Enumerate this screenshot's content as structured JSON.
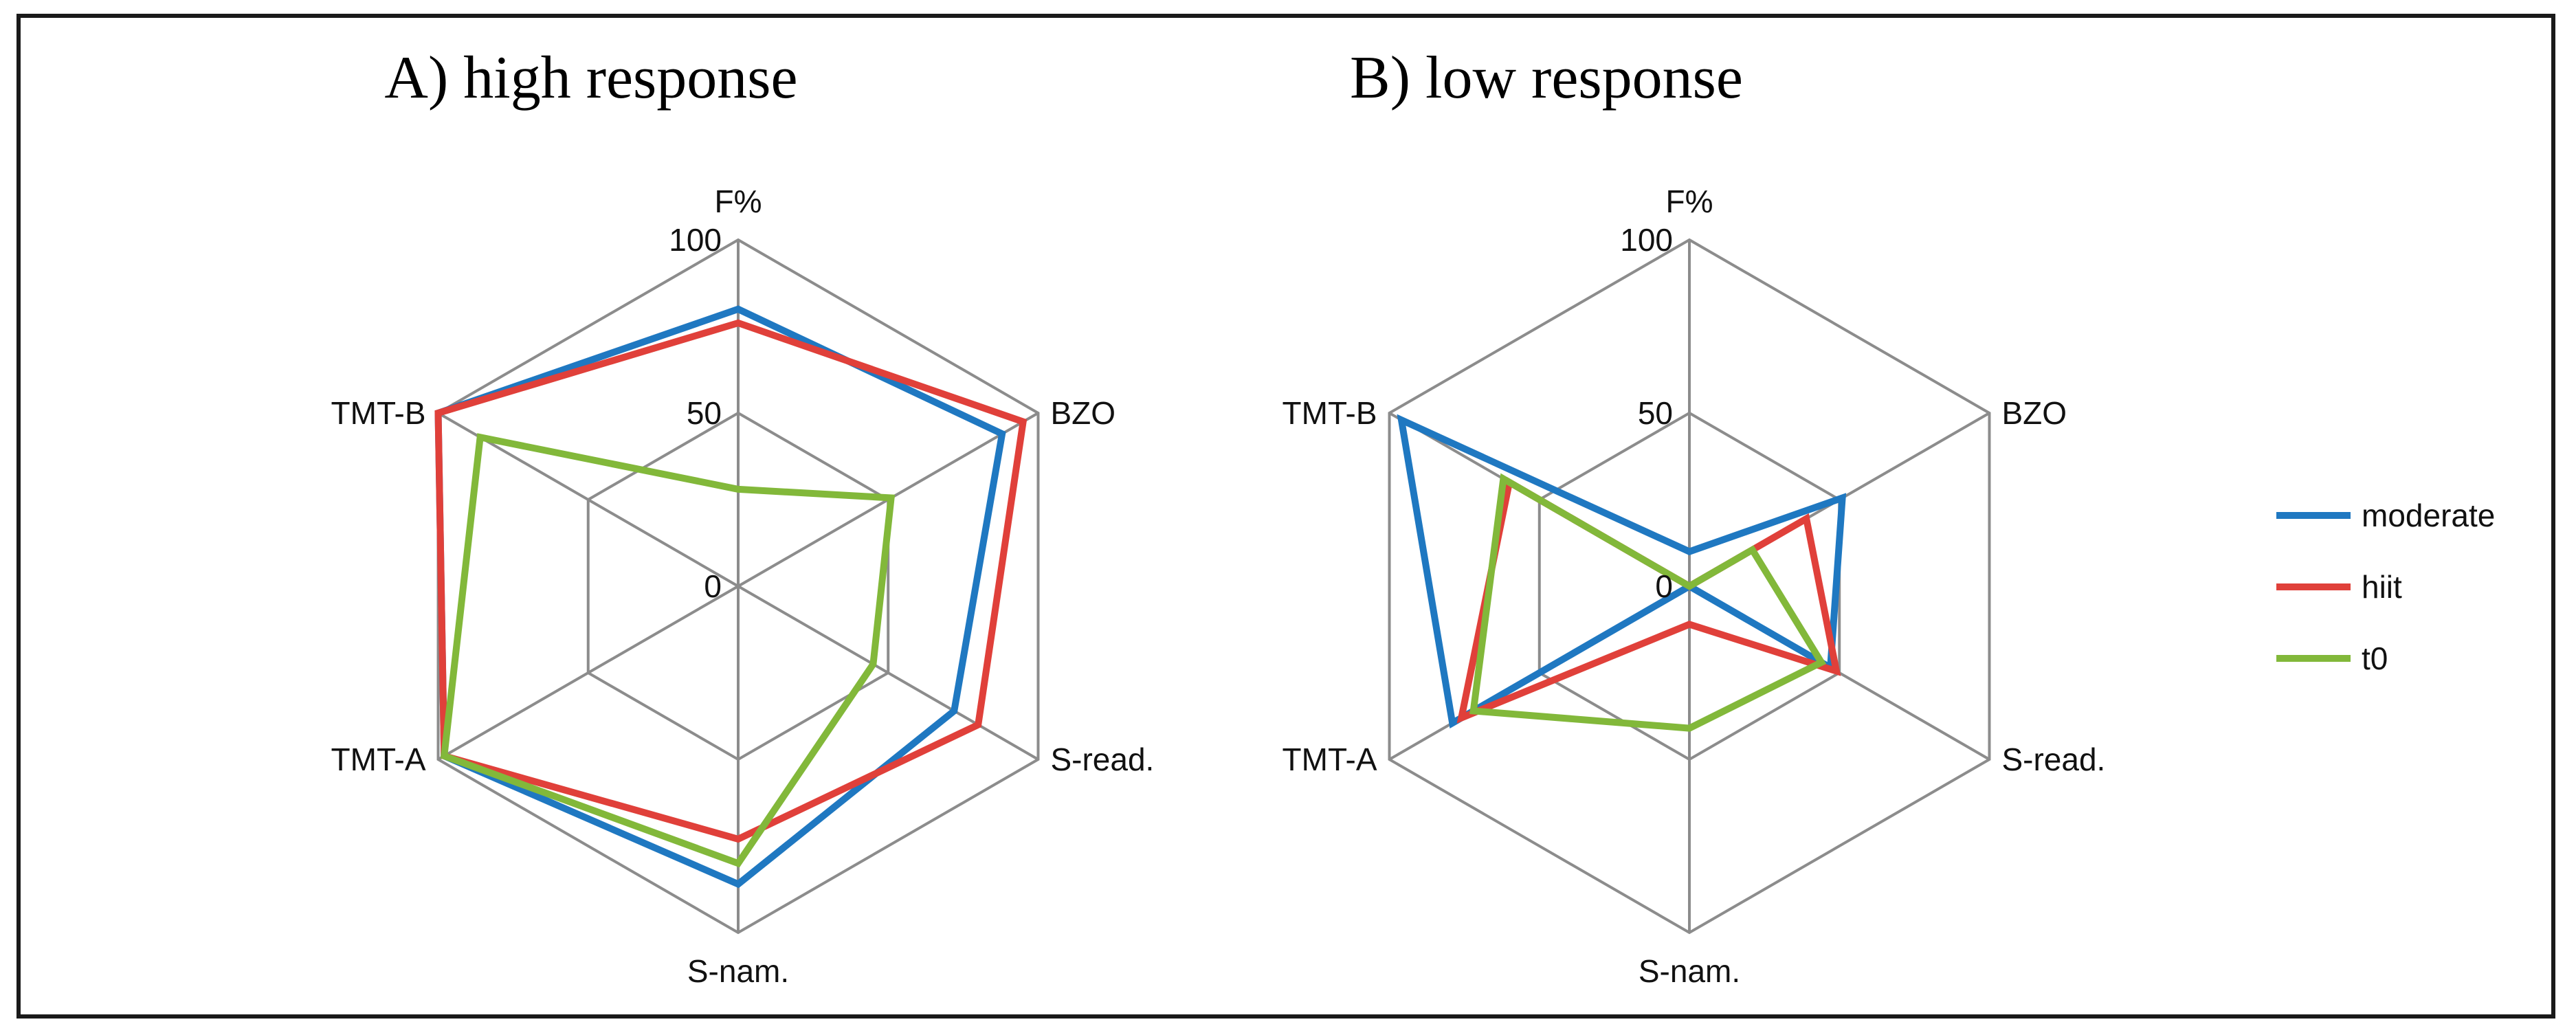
{
  "chart_data": [
    {
      "type": "radar",
      "title": "A) high response",
      "axes": [
        "F%",
        "BZO",
        "S-read.",
        "S-nam.",
        "TMT-A",
        "TMT-B"
      ],
      "rlim": [
        0,
        100
      ],
      "ticks": [
        0,
        50,
        100
      ],
      "tick_labels": [
        "0",
        "50",
        "100"
      ],
      "series": [
        {
          "name": "moderate",
          "values": [
            80,
            88,
            72,
            86,
            98,
            100
          ]
        },
        {
          "name": "hiit",
          "values": [
            76,
            95,
            80,
            73,
            98,
            100
          ]
        },
        {
          "name": "t0",
          "values": [
            28,
            51,
            45,
            80,
            98,
            86
          ]
        }
      ]
    },
    {
      "type": "radar",
      "title": "B) low response",
      "axes": [
        "F%",
        "BZO",
        "S-read.",
        "S-nam.",
        "TMT-A",
        "TMT-B"
      ],
      "rlim": [
        0,
        100
      ],
      "ticks": [
        0,
        50,
        100
      ],
      "tick_labels": [
        "0",
        "50",
        "100"
      ],
      "series": [
        {
          "name": "moderate",
          "values": [
            10,
            51,
            47,
            0,
            79,
            96
          ]
        },
        {
          "name": "hiit",
          "values": [
            0,
            39,
            49,
            11,
            76,
            60
          ]
        },
        {
          "name": "t0",
          "values": [
            0,
            21,
            44,
            41,
            72,
            62
          ]
        }
      ]
    }
  ],
  "legend": [
    {
      "name": "moderate",
      "color": "#1f78c1"
    },
    {
      "name": "hiit",
      "color": "#e0403a"
    },
    {
      "name": "t0",
      "color": "#82b83a"
    }
  ]
}
